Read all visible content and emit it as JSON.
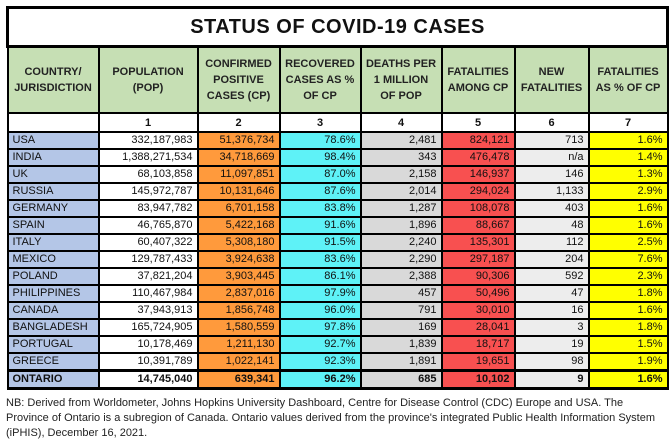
{
  "title": "STATUS OF COVID-19 CASES",
  "headers": [
    "COUNTRY/ JURISDICTION",
    "POPULATION (POP)",
    "CONFIRMED POSITIVE CASES (CP)",
    "RECOVERED CASES AS % OF CP",
    "DEATHS PER 1 MILLION OF POP",
    "FATALITIES AMONG CP",
    "NEW FATALITIES",
    "FATALITIES AS % OF CP"
  ],
  "column_numbers": [
    "",
    "1",
    "2",
    "3",
    "4",
    "5",
    "6",
    "7"
  ],
  "colors": {
    "country": "#b4c6e7",
    "confirmed": "#ff9a3c",
    "recovered": "#5ef2f7",
    "deaths_per_million": "#d9d9d9",
    "fatalities": "#f85050",
    "new_fatalities": "#ededed",
    "fatality_pct": "#ffff00",
    "header": "#c6dfb4"
  },
  "rows": [
    [
      "USA",
      "332,187,983",
      "51,376,734",
      "78.6%",
      "2,481",
      "824,121",
      "713",
      "1.6%"
    ],
    [
      "INDIA",
      "1,388,271,534",
      "34,718,669",
      "98.4%",
      "343",
      "476,478",
      "n/a",
      "1.4%"
    ],
    [
      "UK",
      "68,103,858",
      "11,097,851",
      "87.0%",
      "2,158",
      "146,937",
      "146",
      "1.3%"
    ],
    [
      "RUSSIA",
      "145,972,787",
      "10,131,646",
      "87.6%",
      "2,014",
      "294,024",
      "1,133",
      "2.9%"
    ],
    [
      "GERMANY",
      "83,947,782",
      "6,701,158",
      "83.8%",
      "1,287",
      "108,078",
      "403",
      "1.6%"
    ],
    [
      "SPAIN",
      "46,765,870",
      "5,422,168",
      "91.6%",
      "1,896",
      "88,667",
      "48",
      "1.6%"
    ],
    [
      "ITALY",
      "60,407,322",
      "5,308,180",
      "91.5%",
      "2,240",
      "135,301",
      "112",
      "2.5%"
    ],
    [
      "MEXICO",
      "129,787,433",
      "3,924,638",
      "83.6%",
      "2,290",
      "297,187",
      "204",
      "7.6%"
    ],
    [
      "POLAND",
      "37,821,204",
      "3,903,445",
      "86.1%",
      "2,388",
      "90,306",
      "592",
      "2.3%"
    ],
    [
      "PHILIPPINES",
      "110,467,984",
      "2,837,016",
      "97.9%",
      "457",
      "50,496",
      "47",
      "1.8%"
    ],
    [
      "CANADA",
      "37,943,913",
      "1,856,748",
      "96.0%",
      "791",
      "30,010",
      "16",
      "1.6%"
    ],
    [
      "BANGLADESH",
      "165,724,905",
      "1,580,559",
      "97.8%",
      "169",
      "28,041",
      "3",
      "1.8%"
    ],
    [
      "PORTUGAL",
      "10,178,469",
      "1,211,130",
      "92.7%",
      "1,839",
      "18,717",
      "19",
      "1.5%"
    ],
    [
      "GREECE",
      "10,391,789",
      "1,022,141",
      "92.3%",
      "1,891",
      "19,651",
      "98",
      "1.9%"
    ],
    [
      "ONTARIO",
      "14,745,040",
      "639,341",
      "96.2%",
      "685",
      "10,102",
      "9",
      "1.6%"
    ]
  ],
  "note": "NB: Derived from Worldometer, Johns Hopkins University Dashboard, Centre for Disease Control (CDC) Europe and USA. The Province of Ontario is a subregion of Canada. Ontario values derived from the province's integrated Public Health Information System (iPHIS), December 16, 2021."
}
